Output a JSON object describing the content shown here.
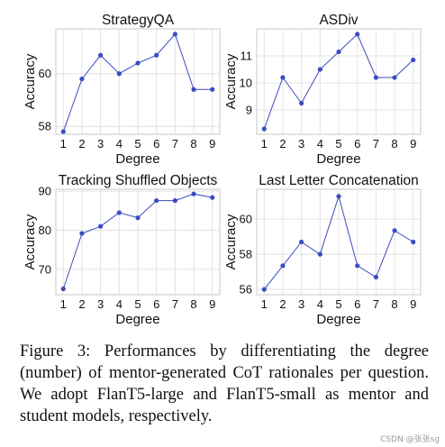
{
  "chart_data": [
    {
      "type": "line",
      "title": "StrategyQA",
      "xlabel": "Degree",
      "ylabel": "Accuracy",
      "x": [
        1,
        2,
        3,
        4,
        5,
        6,
        7,
        8,
        9
      ],
      "values": [
        57.8,
        59.8,
        60.7,
        60.0,
        60.4,
        60.7,
        61.5,
        59.4,
        59.4
      ],
      "ylim": [
        57.7,
        61.7
      ],
      "yticks": [
        58,
        60
      ],
      "grid": true,
      "color": "#3a4cc0"
    },
    {
      "type": "line",
      "title": "ASDiv",
      "xlabel": "Degree",
      "ylabel": "Accuracy",
      "x": [
        1,
        2,
        3,
        4,
        5,
        6,
        7,
        8,
        9
      ],
      "values": [
        8.3,
        10.2,
        9.25,
        10.5,
        11.15,
        11.8,
        10.2,
        10.2,
        10.85
      ],
      "ylim": [
        8.1,
        12.0
      ],
      "yticks": [
        9,
        10,
        11
      ],
      "grid": true,
      "color": "#3a4cc0"
    },
    {
      "type": "line",
      "title": "Tracking Shuffled Objects",
      "xlabel": "Degree",
      "ylabel": "Accuracy",
      "x": [
        1,
        2,
        3,
        4,
        5,
        6,
        7,
        8,
        9
      ],
      "values": [
        65.0,
        79.2,
        81.0,
        84.5,
        83.2,
        87.6,
        87.6,
        89.3,
        88.4
      ],
      "ylim": [
        63.5,
        90.5
      ],
      "yticks": [
        70,
        80,
        90
      ],
      "grid": true,
      "color": "#3a4cc0"
    },
    {
      "type": "line",
      "title": "Last Letter Concatenation",
      "xlabel": "Degree",
      "ylabel": "Accuracy",
      "x": [
        1,
        2,
        3,
        4,
        5,
        6,
        7,
        8,
        9
      ],
      "values": [
        56.0,
        57.35,
        58.7,
        58.0,
        61.3,
        57.35,
        56.7,
        59.35,
        58.7
      ],
      "ylim": [
        55.7,
        61.7
      ],
      "yticks": [
        56,
        58,
        60
      ],
      "grid": true,
      "color": "#3a4cc0"
    }
  ],
  "caption": "Figure 3: Performances by differentiating the degree (number) of mentor-generated CoT rationales per question. We adopt FlanT5-large and FlanT5-small as mentor and student models, respectively.",
  "watermark": "CSDN @张张sg"
}
